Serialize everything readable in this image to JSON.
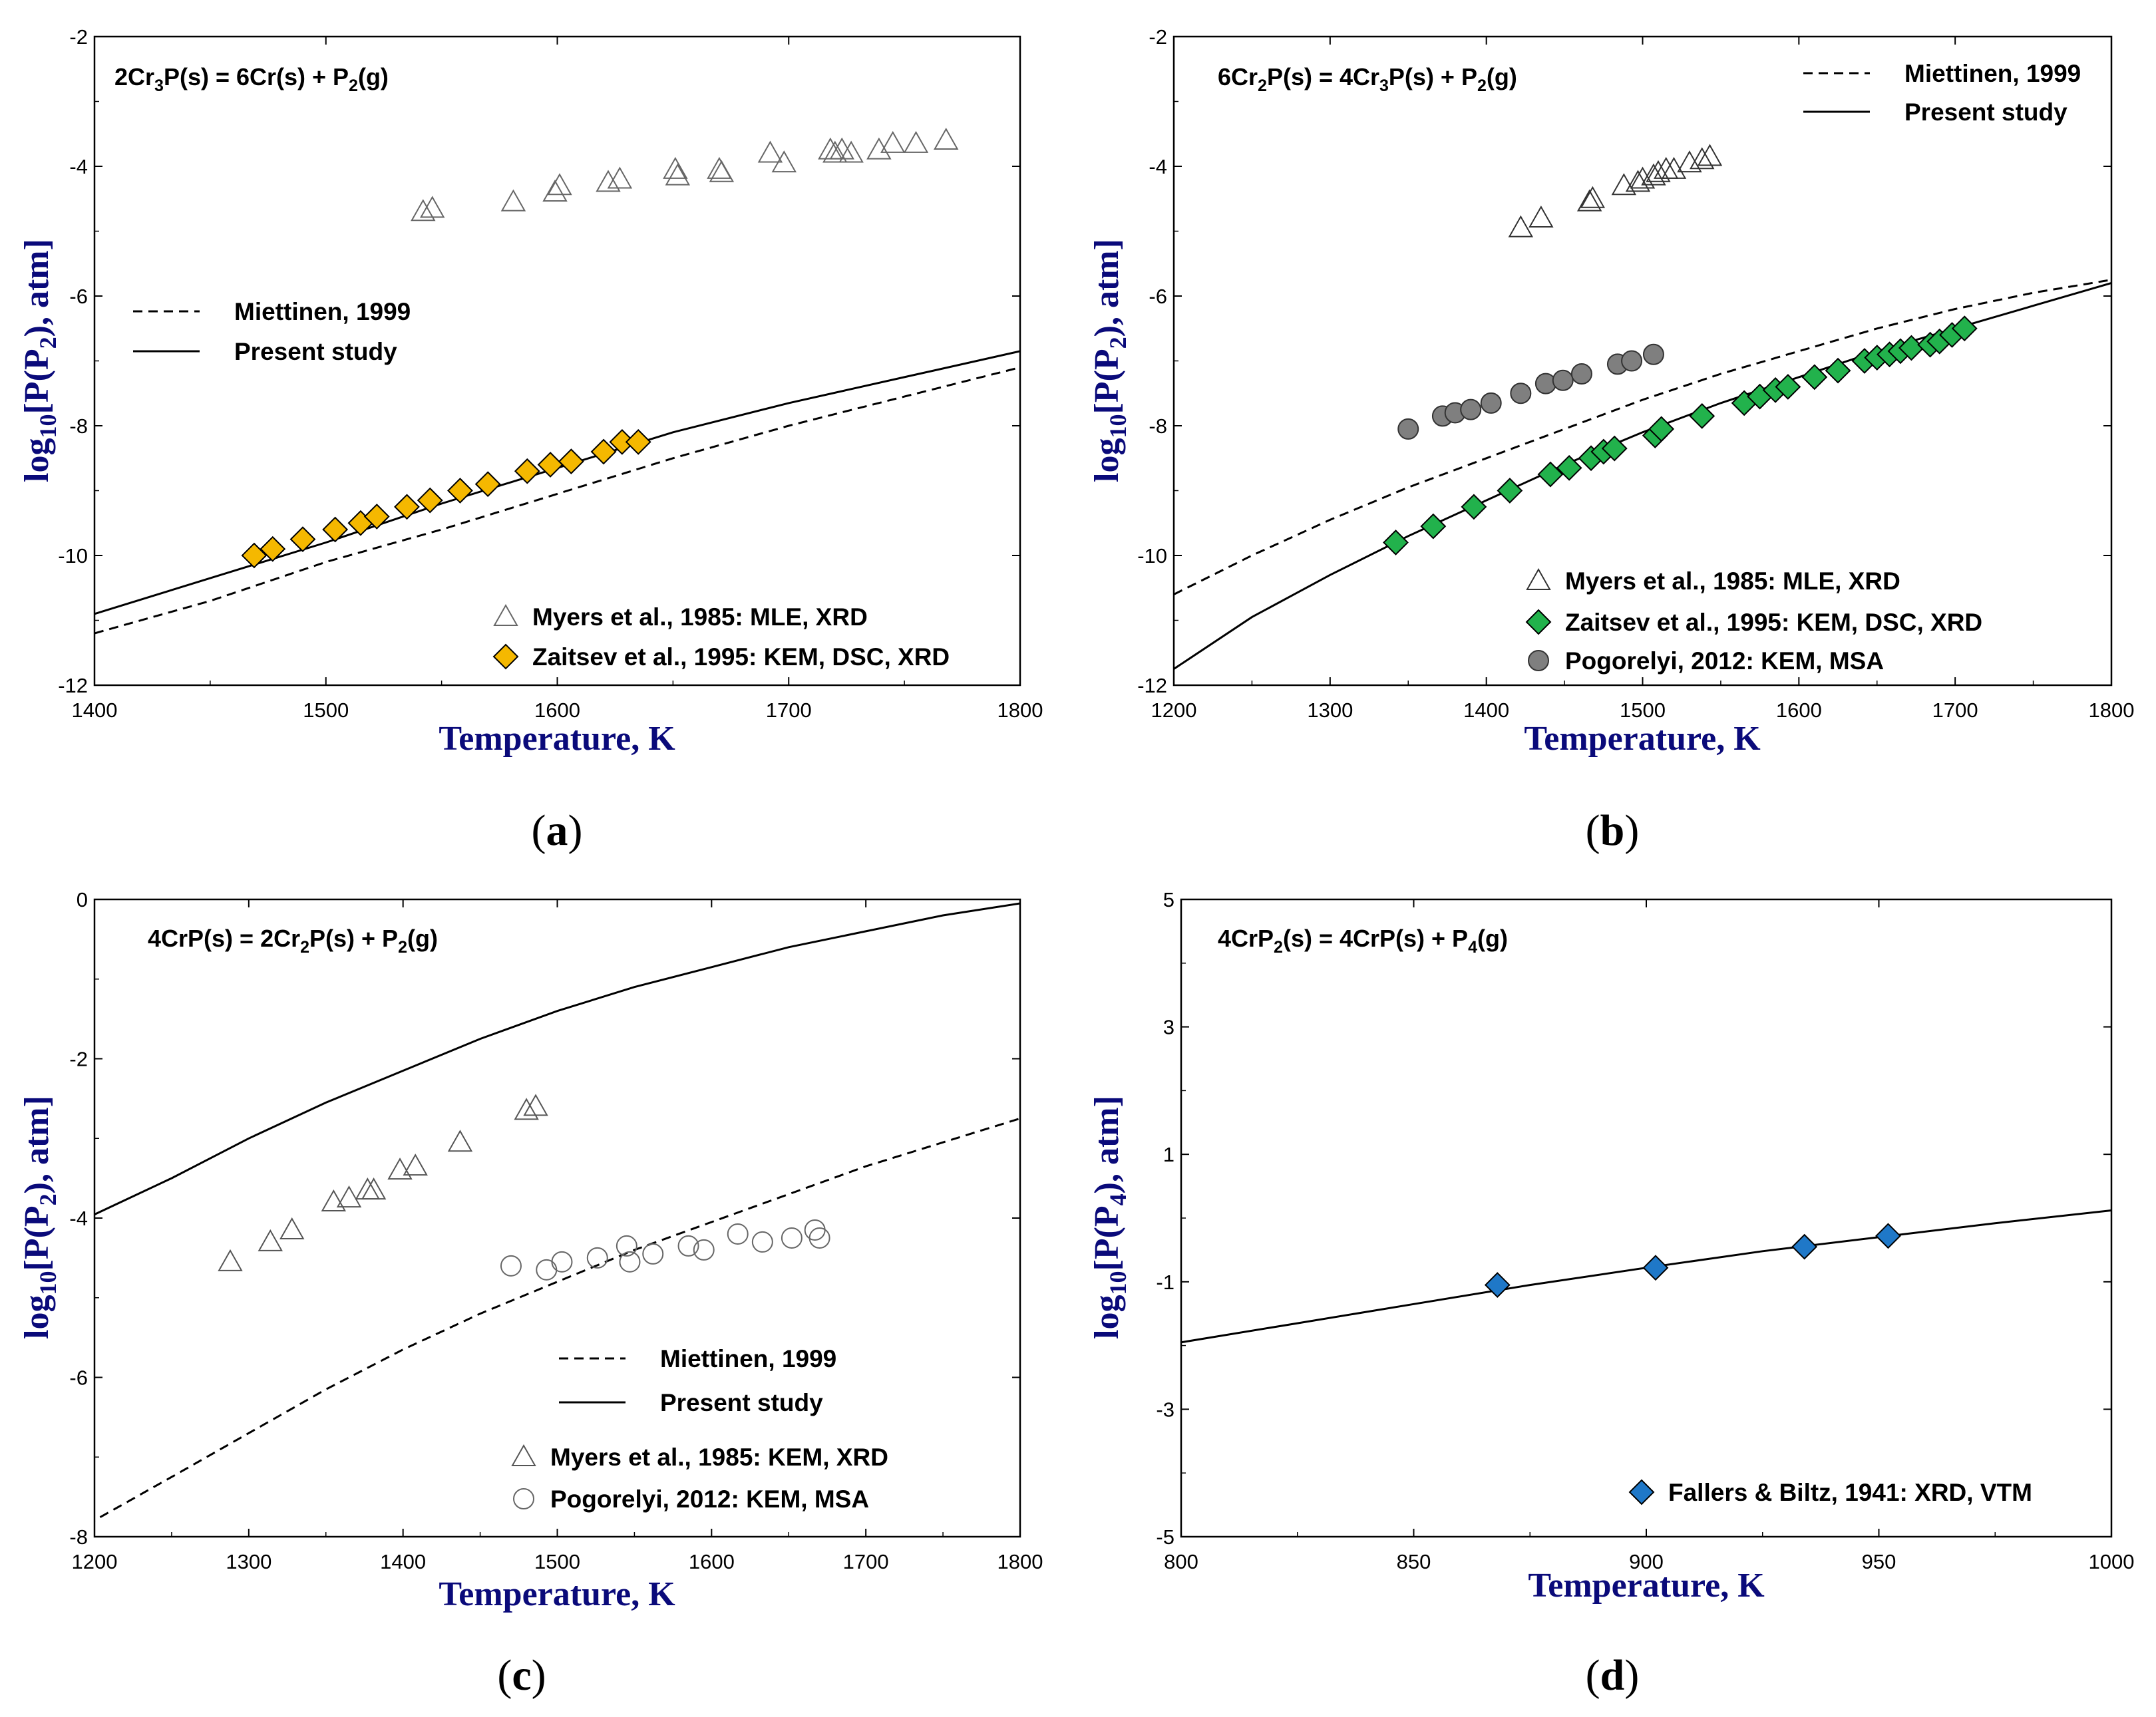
{
  "chart_data": [
    {
      "id": "a",
      "type": "scatter",
      "panel_label": "a",
      "equation": {
        "lhs": "2Cr",
        "lhs_sub": "3",
        "mid": "P(s) = 6Cr(s) + P",
        "rhs_sub": "2",
        "rhs": "(g)"
      },
      "xlabel": "Temperature, K",
      "ylabel": {
        "pre": "log",
        "sub1": "10",
        "mid": "[P(P",
        "sub2": "2",
        "post": "), atm]"
      },
      "xlim": [
        1400,
        1800
      ],
      "ylim": [
        -12,
        -2
      ],
      "xticks": [
        1400,
        1500,
        1600,
        1700,
        1800
      ],
      "xtick_labels": [
        "1400",
        "1500",
        "1600",
        "1700",
        "1800"
      ],
      "yticks": [
        -12,
        -10,
        -8,
        -6,
        -4,
        -2
      ],
      "ytick_labels": [
        "-12",
        "-10",
        "-8",
        "-6",
        "-4",
        "-2"
      ],
      "lines": [
        {
          "name": "Miettinen, 1999",
          "style": "dashed",
          "x": [
            1400,
            1450,
            1500,
            1550,
            1600,
            1650,
            1700,
            1750,
            1800
          ],
          "y": [
            -11.2,
            -10.7,
            -10.1,
            -9.6,
            -9.05,
            -8.5,
            -8.0,
            -7.55,
            -7.1
          ]
        },
        {
          "name": "Present study",
          "style": "solid",
          "x": [
            1400,
            1450,
            1500,
            1550,
            1600,
            1650,
            1700,
            1750,
            1800
          ],
          "y": [
            -10.9,
            -10.35,
            -9.8,
            -9.2,
            -8.65,
            -8.1,
            -7.65,
            -7.25,
            -6.85
          ]
        }
      ],
      "series": [
        {
          "name": "Myers et al., 1985: MLE, XRD",
          "marker": "triangle-open",
          "color": "#666666",
          "x": [
            1542,
            1546,
            1581,
            1599,
            1601,
            1622,
            1627,
            1651,
            1652,
            1670,
            1671,
            1692,
            1698,
            1718,
            1720,
            1723,
            1727,
            1739,
            1745,
            1755,
            1768
          ],
          "y": [
            -4.7,
            -4.65,
            -4.55,
            -4.4,
            -4.3,
            -4.25,
            -4.2,
            -4.05,
            -4.15,
            -4.05,
            -4.1,
            -3.8,
            -3.95,
            -3.75,
            -3.8,
            -3.75,
            -3.8,
            -3.75,
            -3.65,
            -3.65,
            -3.6
          ]
        },
        {
          "name": "Zaitsev et al., 1995: KEM, DSC, XRD",
          "marker": "diamond",
          "color": "#f5b800",
          "x": [
            1469,
            1477,
            1490,
            1504,
            1515,
            1522,
            1535,
            1545,
            1558,
            1570,
            1587,
            1597,
            1606,
            1620,
            1628,
            1635
          ],
          "y": [
            -10.0,
            -9.9,
            -9.75,
            -9.6,
            -9.5,
            -9.4,
            -9.25,
            -9.15,
            -9.0,
            -8.9,
            -8.7,
            -8.6,
            -8.55,
            -8.4,
            -8.25,
            -8.25
          ]
        }
      ],
      "legends": [
        {
          "text": "Miettinen, 1999",
          "kind": "line-dashed"
        },
        {
          "text": "Present study",
          "kind": "line-solid"
        },
        {
          "text": "Myers et al., 1985: MLE, XRD",
          "kind": "triangle-open",
          "color": "#666666"
        },
        {
          "text": "Zaitsev et al., 1995: KEM, DSC, XRD",
          "kind": "diamond",
          "color": "#f5b800"
        }
      ]
    },
    {
      "id": "b",
      "type": "scatter",
      "panel_label": "b",
      "equation": {
        "lhs": "6Cr",
        "lhs_sub": "2",
        "mid": "P(s) = 4Cr",
        "mid_sub": "3",
        "mid2": "P(s) + P",
        "rhs_sub": "2",
        "rhs": "(g)"
      },
      "xlabel": "Temperature, K",
      "ylabel": {
        "pre": "log",
        "sub1": "10",
        "mid": "[P(P",
        "sub2": "2",
        "post": "), atm]"
      },
      "xlim": [
        1200,
        1800
      ],
      "ylim": [
        -12,
        -2
      ],
      "xticks": [
        1200,
        1300,
        1400,
        1500,
        1600,
        1700,
        1800
      ],
      "xtick_labels": [
        "1200",
        "1300",
        "1400",
        "1500",
        "1600",
        "1700",
        "1800"
      ],
      "yticks": [
        -12,
        -10,
        -8,
        -6,
        -4,
        -2
      ],
      "ytick_labels": [
        "-12",
        "-10",
        "-8",
        "-6",
        "-4",
        "-2"
      ],
      "lines": [
        {
          "name": "Miettinen, 1999",
          "style": "dashed",
          "x": [
            1200,
            1250,
            1300,
            1350,
            1400,
            1450,
            1500,
            1550,
            1600,
            1650,
            1700,
            1750,
            1800
          ],
          "y": [
            -10.6,
            -10.0,
            -9.45,
            -8.95,
            -8.5,
            -8.05,
            -7.6,
            -7.2,
            -6.85,
            -6.5,
            -6.2,
            -5.95,
            -5.75
          ]
        },
        {
          "name": "Present study",
          "style": "solid",
          "x": [
            1200,
            1250,
            1300,
            1350,
            1400,
            1450,
            1500,
            1550,
            1600,
            1650,
            1700,
            1750,
            1800
          ],
          "y": [
            -11.75,
            -10.95,
            -10.3,
            -9.7,
            -9.15,
            -8.6,
            -8.1,
            -7.65,
            -7.25,
            -6.85,
            -6.5,
            -6.15,
            -5.8
          ]
        }
      ],
      "series": [
        {
          "name": "Myers et al., 1985: MLE, XRD",
          "marker": "triangle-open",
          "color": "#333333",
          "x": [
            1422,
            1435,
            1466,
            1468,
            1488,
            1497,
            1500,
            1507,
            1510,
            1515,
            1520,
            1530,
            1538,
            1543
          ],
          "y": [
            -4.95,
            -4.8,
            -4.55,
            -4.5,
            -4.3,
            -4.25,
            -4.2,
            -4.15,
            -4.1,
            -4.05,
            -4.05,
            -3.95,
            -3.9,
            -3.85
          ]
        },
        {
          "name": "Zaitsev et al., 1995: KEM, DSC, XRD",
          "marker": "diamond",
          "color": "#22b24c",
          "x": [
            1342,
            1366,
            1392,
            1415,
            1441,
            1453,
            1467,
            1475,
            1482,
            1508,
            1512,
            1538,
            1565,
            1575,
            1585,
            1593,
            1610,
            1625,
            1642,
            1650,
            1658,
            1665,
            1672,
            1684,
            1690,
            1698,
            1706
          ],
          "y": [
            -9.8,
            -9.55,
            -9.25,
            -9.0,
            -8.75,
            -8.65,
            -8.5,
            -8.4,
            -8.35,
            -8.15,
            -8.05,
            -7.85,
            -7.65,
            -7.55,
            -7.45,
            -7.4,
            -7.25,
            -7.15,
            -7.0,
            -6.95,
            -6.9,
            -6.85,
            -6.8,
            -6.75,
            -6.7,
            -6.6,
            -6.5
          ]
        },
        {
          "name": "Pogorelyi, 2012: KEM, MSA",
          "marker": "circle",
          "color": "#7f7f7f",
          "x": [
            1350,
            1372,
            1380,
            1390,
            1403,
            1422,
            1438,
            1449,
            1461,
            1484,
            1493,
            1507
          ],
          "y": [
            -8.05,
            -7.85,
            -7.8,
            -7.75,
            -7.65,
            -7.5,
            -7.35,
            -7.3,
            -7.2,
            -7.05,
            -7.0,
            -6.9
          ]
        }
      ],
      "legends": [
        {
          "text": "Miettinen, 1999",
          "kind": "line-dashed"
        },
        {
          "text": "Present study",
          "kind": "line-solid"
        },
        {
          "text": "Myers et al., 1985: MLE, XRD",
          "kind": "triangle-open",
          "color": "#333333"
        },
        {
          "text": "Zaitsev et al., 1995: KEM, DSC, XRD",
          "kind": "diamond",
          "color": "#22b24c"
        },
        {
          "text": "Pogorelyi, 2012: KEM, MSA",
          "kind": "circle",
          "color": "#7f7f7f"
        }
      ]
    },
    {
      "id": "c",
      "type": "scatter",
      "panel_label": "c",
      "equation": {
        "lhs": "4CrP(s) = 2Cr",
        "lhs_sub": "2",
        "mid": "P(s) + P",
        "rhs_sub": "2",
        "rhs": "(g)"
      },
      "xlabel": "Temperature, K",
      "ylabel": {
        "pre": "log",
        "sub1": "10",
        "mid": "[P(P",
        "sub2": "2",
        "post": "), atm]"
      },
      "xlim": [
        1200,
        1800
      ],
      "ylim": [
        -8,
        0
      ],
      "xticks": [
        1200,
        1300,
        1400,
        1500,
        1600,
        1700,
        1800
      ],
      "xtick_labels": [
        "1200",
        "1300",
        "1400",
        "1500",
        "1600",
        "1700",
        "1800"
      ],
      "yticks": [
        -8,
        -6,
        -4,
        -2,
        0
      ],
      "ytick_labels": [
        "-8",
        "-6",
        "-4",
        "-2",
        "0"
      ],
      "lines": [
        {
          "name": "Miettinen, 1999",
          "style": "dashed",
          "x": [
            1195,
            1250,
            1300,
            1350,
            1400,
            1450,
            1500,
            1550,
            1600,
            1650,
            1700,
            1750,
            1800
          ],
          "y": [
            -7.85,
            -7.25,
            -6.7,
            -6.15,
            -5.65,
            -5.2,
            -4.8,
            -4.4,
            -4.05,
            -3.7,
            -3.35,
            -3.05,
            -2.75
          ]
        },
        {
          "name": "Present study",
          "style": "solid",
          "x": [
            1195,
            1250,
            1300,
            1350,
            1400,
            1450,
            1500,
            1550,
            1600,
            1650,
            1700,
            1750,
            1800
          ],
          "y": [
            -4.0,
            -3.5,
            -3.0,
            -2.55,
            -2.15,
            -1.75,
            -1.4,
            -1.1,
            -0.85,
            -0.6,
            -0.4,
            -0.2,
            -0.05
          ]
        }
      ],
      "series": [
        {
          "name": "Myers et al., 1985: KEM, XRD",
          "marker": "triangle-open",
          "color": "#555555",
          "x": [
            1288,
            1314,
            1328,
            1355,
            1365,
            1377,
            1381,
            1398,
            1408,
            1437,
            1480,
            1486
          ],
          "y": [
            -4.55,
            -4.3,
            -4.15,
            -3.8,
            -3.75,
            -3.65,
            -3.65,
            -3.4,
            -3.35,
            -3.05,
            -2.65,
            -2.6
          ]
        },
        {
          "name": "Pogorelyi, 2012: KEM, MSA",
          "marker": "circle-open",
          "color": "#666666",
          "x": [
            1470,
            1493,
            1503,
            1526,
            1545,
            1547,
            1562,
            1585,
            1595,
            1617,
            1633,
            1652,
            1667,
            1670
          ],
          "y": [
            -4.6,
            -4.65,
            -4.55,
            -4.5,
            -4.35,
            -4.55,
            -4.45,
            -4.35,
            -4.4,
            -4.2,
            -4.3,
            -4.25,
            -4.15,
            -4.25
          ]
        }
      ],
      "legends": [
        {
          "text": "Miettinen, 1999",
          "kind": "line-dashed"
        },
        {
          "text": "Present study",
          "kind": "line-solid"
        },
        {
          "text": "Myers et al., 1985: KEM, XRD",
          "kind": "triangle-open",
          "color": "#555555"
        },
        {
          "text": "Pogorelyi, 2012: KEM, MSA",
          "kind": "circle-open",
          "color": "#666666"
        }
      ]
    },
    {
      "id": "d",
      "type": "scatter",
      "panel_label": "d",
      "equation": {
        "lhs": "4CrP",
        "lhs_sub": "2",
        "mid": "(s) = 4CrP(s) + P",
        "rhs_sub": "4",
        "rhs": "(g)"
      },
      "xlabel": "Temperature, K",
      "ylabel": {
        "pre": "log",
        "sub1": "10",
        "mid": "[P(P",
        "sub2": "4",
        "post": "), atm]"
      },
      "xlim": [
        800,
        1000
      ],
      "ylim": [
        -5,
        5
      ],
      "xticks": [
        800,
        850,
        900,
        950,
        1000
      ],
      "xtick_labels": [
        "800",
        "850",
        "900",
        "950",
        "1000"
      ],
      "yticks": [
        -5,
        -3,
        -1,
        1,
        3,
        5
      ],
      "ytick_labels": [
        "-5",
        "-3",
        "-1",
        "1",
        "3",
        "5"
      ],
      "lines": [
        {
          "name": "Present study",
          "style": "solid",
          "x": [
            800,
            825,
            850,
            875,
            900,
            925,
            950,
            975,
            1000
          ],
          "y": [
            -1.95,
            -1.65,
            -1.35,
            -1.05,
            -0.78,
            -0.52,
            -0.3,
            -0.08,
            0.12
          ]
        }
      ],
      "series": [
        {
          "name": "Fallers & Biltz, 1941: XRD, VTM",
          "marker": "diamond",
          "color": "#1f78c8",
          "x": [
            868,
            902,
            934,
            952
          ],
          "y": [
            -1.05,
            -0.78,
            -0.45,
            -0.28
          ]
        }
      ],
      "legends": [
        {
          "text": "Fallers & Biltz, 1941: XRD, VTM",
          "kind": "diamond",
          "color": "#1f78c8"
        }
      ]
    }
  ]
}
